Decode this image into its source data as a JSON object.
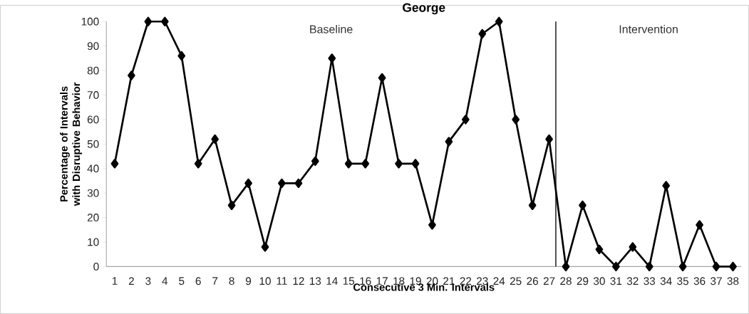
{
  "chart_data": {
    "type": "line",
    "title": "George",
    "xlabel": "Consecutive 3 Min. Intervals",
    "ylabel": "Percentage of Intervals with Disruptive Behavior",
    "x": [
      1,
      2,
      3,
      4,
      5,
      6,
      7,
      8,
      9,
      10,
      11,
      12,
      13,
      14,
      15,
      16,
      17,
      18,
      19,
      20,
      21,
      22,
      23,
      24,
      25,
      26,
      27,
      28,
      29,
      30,
      31,
      32,
      33,
      34,
      35,
      36,
      37,
      38
    ],
    "series": [
      {
        "color": "#000000",
        "values": [
          42,
          78,
          100,
          100,
          86,
          42,
          52,
          25,
          34,
          8,
          34,
          34,
          43,
          85,
          42,
          42,
          77,
          42,
          42,
          17,
          51,
          60,
          95,
          100,
          60,
          25,
          52,
          0,
          25,
          7,
          0,
          8,
          0,
          33,
          0,
          17,
          0,
          0
        ]
      }
    ],
    "xlim": [
      0.5,
      38.5
    ],
    "xticks": [
      1,
      2,
      3,
      4,
      5,
      6,
      7,
      8,
      9,
      10,
      11,
      12,
      13,
      14,
      15,
      16,
      17,
      18,
      19,
      20,
      21,
      22,
      23,
      24,
      25,
      26,
      27,
      28,
      29,
      30,
      31,
      32,
      33,
      34,
      35,
      36,
      37,
      38
    ],
    "ylim": [
      0,
      100
    ],
    "yticks": [
      0,
      10,
      20,
      30,
      40,
      50,
      60,
      70,
      80,
      90,
      100
    ],
    "ref_lines": [
      {
        "axis": "x",
        "value": 27.4,
        "color": "#000000"
      }
    ],
    "annotations": [
      "Baseline",
      "Intervention"
    ],
    "marker": "diamond",
    "line_style": "solid",
    "grid": false
  }
}
